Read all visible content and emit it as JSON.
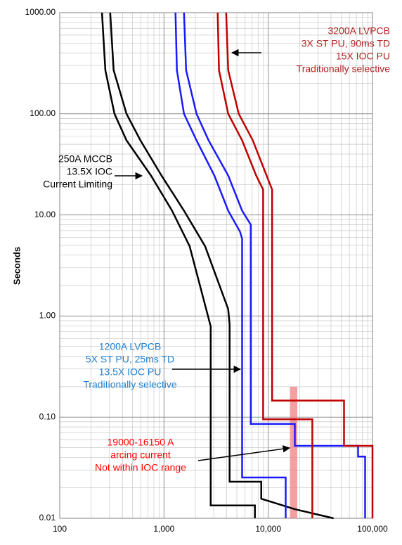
{
  "chart_data": {
    "type": "line",
    "log_x": true,
    "log_y": true,
    "grid": true,
    "y_label": "Seconds",
    "xlim": [
      100,
      100000
    ],
    "ylim": [
      0.01,
      1000
    ],
    "xticks": [
      100,
      {
        "value": 1000,
        "label": "1,000"
      },
      {
        "value": 10000,
        "label": "10,000"
      },
      {
        "value": 100000,
        "label": "100,000"
      }
    ],
    "yticks": [
      {
        "value": 0.01,
        "label": "0.01"
      },
      {
        "value": 0.1,
        "label": "0.10"
      },
      {
        "value": 1,
        "label": "1.00"
      },
      {
        "value": 10,
        "label": "10.00"
      },
      {
        "value": 100,
        "label": "100.00"
      },
      {
        "value": 1000,
        "label": "1000.00"
      }
    ],
    "series": [
      {
        "color": "#000000",
        "x": [
          254,
          274,
          335,
          437,
          750,
          1194,
          1762,
          2805,
          2805,
          7450,
          7450
        ],
        "values": [
          1000,
          270,
          100,
          54.6,
          24.5,
          11,
          4.9,
          0.79,
          0.0134,
          0.0134,
          0.01
        ]
      },
      {
        "color": "#000000",
        "x": [
          305,
          329,
          437,
          594,
          946,
          1556,
          2477,
          4130,
          4260,
          4260,
          8570,
          8570,
          18000,
          42300
        ],
        "values": [
          1000,
          270,
          100,
          54.6,
          24.5,
          11,
          4.9,
          1.17,
          0.83,
          0.023,
          0.023,
          0.0156,
          0.0123,
          0.01
        ]
      },
      {
        "color": "#1a1aff",
        "x": [
          1290,
          1330,
          1556,
          2050,
          3040,
          4130,
          5370,
          5620,
          5620,
          14700,
          14700
        ],
        "values": [
          1000,
          270,
          100,
          54.6,
          24.5,
          11,
          6.8,
          5.8,
          0.0253,
          0.0253,
          0.01
        ]
      },
      {
        "color": "#1a1aff",
        "x": [
          1556,
          1630,
          2050,
          2680,
          4130,
          5620,
          6800,
          6800,
          18000,
          18000,
          72800,
          72800,
          85000,
          85000
        ],
        "values": [
          1000,
          270,
          100,
          54.6,
          24.5,
          11,
          8.0,
          0.0856,
          0.0856,
          0.052,
          0.052,
          0.0408,
          0.0408,
          0.01
        ]
      },
      {
        "color": "#c00000",
        "x": [
          3270,
          3370,
          4130,
          5620,
          7660,
          8940,
          8940,
          26500,
          26500
        ],
        "values": [
          1000,
          270,
          100,
          54.6,
          24.5,
          17.8,
          0.0953,
          0.0953,
          0.01
        ]
      },
      {
        "color": "#c00000",
        "x": [
          3950,
          4130,
          5210,
          7110,
          9640,
          10900,
          10900,
          53300,
          53300,
          100000,
          100000
        ],
        "values": [
          1000,
          270,
          100,
          54.6,
          24.5,
          17.8,
          0.146,
          0.146,
          0.052,
          0.052,
          0.01
        ]
      }
    ],
    "band": {
      "x": [
        16150,
        19000
      ],
      "values": [
        0.01,
        0.2
      ],
      "color": "#f08080"
    },
    "annotations": [
      {
        "lines": [
          "250A MCCB",
          "13.5X IOC",
          "Current Limiting"
        ],
        "color": "#000000"
      },
      {
        "lines": [
          "3200A LVPCB",
          "3X ST PU, 90ms TD",
          "15X IOC PU",
          "Traditionally selective"
        ],
        "color": "#b22222"
      },
      {
        "lines": [
          "1200A LVPCB",
          "5X ST PU, 25ms TD",
          "13.5X IOC PU",
          "Traditionally selective"
        ],
        "color": "#1f7fd0"
      },
      {
        "lines": [
          "19000-16150 A",
          "arcing current",
          "Not within IOC range"
        ],
        "color": "#ff0000"
      }
    ]
  }
}
